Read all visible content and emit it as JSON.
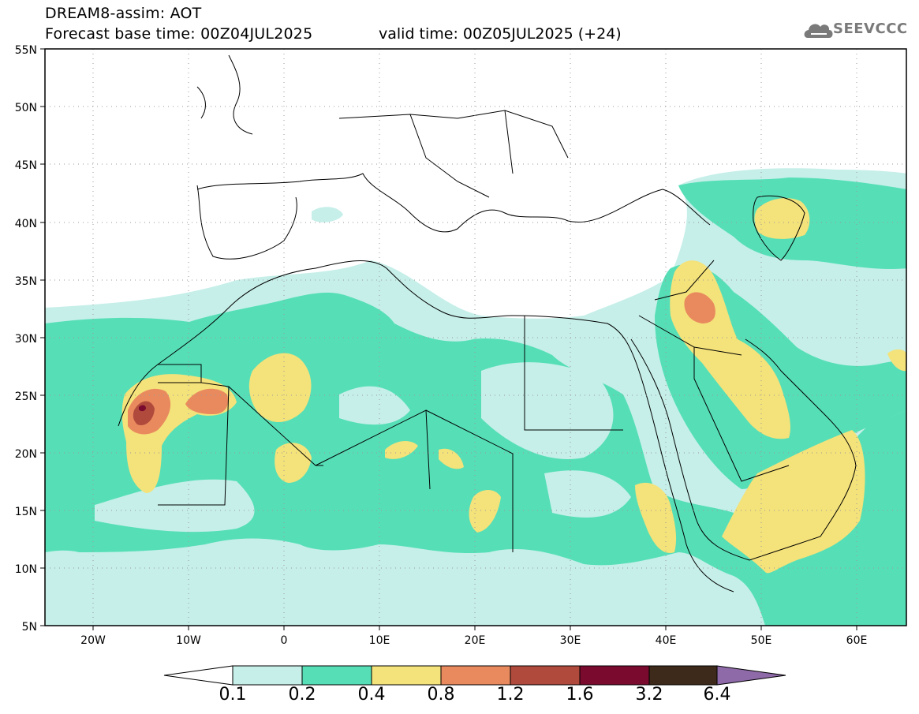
{
  "header": {
    "title_line1": "DREAM8-assim: AOT",
    "title_line2": "Forecast base time: 00Z04JUL2025",
    "valid_time": "valid time: 00Z05JUL2025 (+24)",
    "logo_text": "SEEVCCC"
  },
  "map": {
    "lat_labels": [
      "55N",
      "50N",
      "45N",
      "40N",
      "35N",
      "30N",
      "25N",
      "20N",
      "15N",
      "10N",
      "5N"
    ],
    "lon_labels": [
      "20W",
      "10W",
      "0",
      "10E",
      "20E",
      "30E",
      "40E",
      "50E",
      "60E"
    ],
    "grid": "dotted",
    "extent": {
      "lon": [
        -25,
        65
      ],
      "lat": [
        5,
        55
      ]
    }
  },
  "colorbar": {
    "levels": [
      "0.1",
      "0.2",
      "0.4",
      "0.8",
      "1.2",
      "1.6",
      "3.2",
      "6.4"
    ],
    "colors": [
      "#ffffff",
      "#c6efe9",
      "#56dfb7",
      "#f4e27a",
      "#e98a5e",
      "#b04a3c",
      "#7a0a2e",
      "#3e2a1a",
      "#8e6aa8"
    ]
  },
  "fields": {
    "c01": "#c6efe9",
    "c02": "#56dfb7",
    "c04": "#f4e27a",
    "c08": "#e98a5e",
    "c12": "#b04a3c"
  }
}
